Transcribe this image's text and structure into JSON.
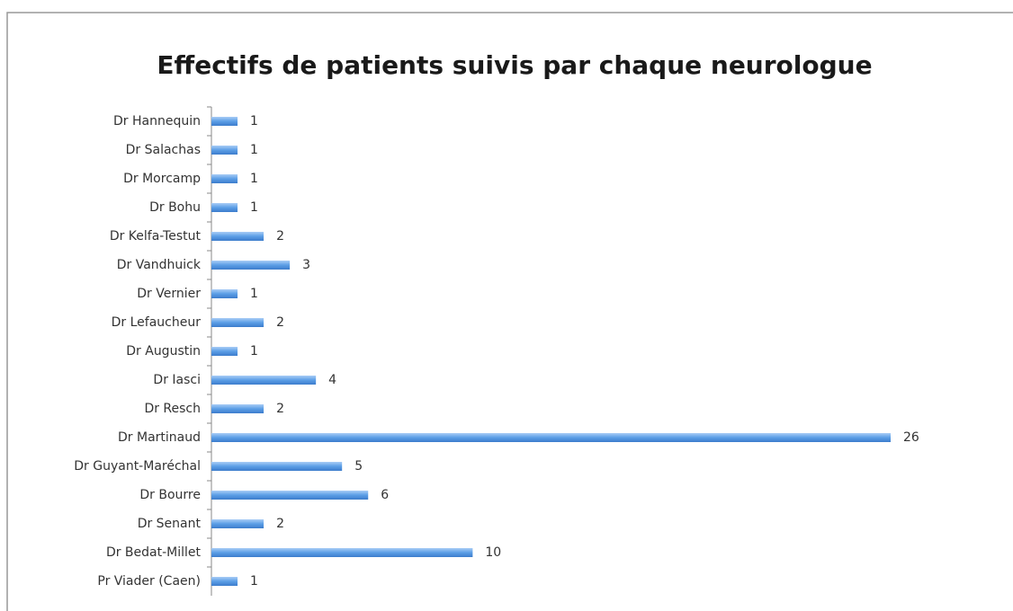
{
  "chart_data": {
    "type": "bar",
    "orientation": "horizontal",
    "title": "Effectifs de patients suivis par chaque neurologue",
    "categories": [
      "Dr Hannequin",
      "Dr Salachas",
      "Dr Morcamp",
      "Dr Bohu",
      "Dr Kelfa-Testut",
      "Dr Vandhuick",
      "Dr Vernier",
      "Dr Lefaucheur",
      "Dr Augustin",
      "Dr Iasci",
      "Dr Resch",
      "Dr Martinaud",
      "Dr Guyant-Maréchal",
      "Dr Bourre",
      "Dr Senant",
      "Dr Bedat-Millet",
      "Pr Viader (Caen)"
    ],
    "values": [
      1,
      1,
      1,
      1,
      2,
      3,
      1,
      2,
      1,
      4,
      2,
      26,
      5,
      6,
      2,
      10,
      1
    ],
    "color": "#5b9ee6"
  }
}
